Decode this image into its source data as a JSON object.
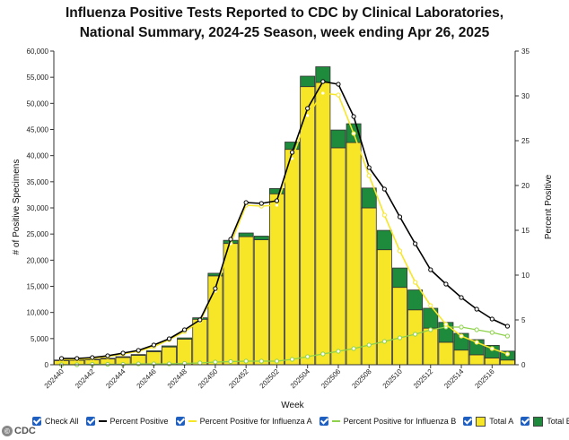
{
  "chart_data": {
    "type": "bar",
    "title_line1": "Influenza Positive Tests Reported to CDC by Clinical Laboratories,",
    "title_line2": "National Summary, 2024-25 Season, week ending Apr 26, 2025",
    "xlabel": "Week",
    "ylabel": "# of Positive Specimens",
    "y2label": "Percent Positive",
    "ylim": [
      0,
      60000
    ],
    "y2lim": [
      0,
      35
    ],
    "yticks": [
      "0",
      "5,000",
      "10,000",
      "15,000",
      "20,000",
      "25,000",
      "30,000",
      "35,000",
      "40,000",
      "45,000",
      "50,000",
      "55,000",
      "60,000"
    ],
    "y2ticks": [
      "0",
      "5",
      "10",
      "15",
      "20",
      "25",
      "30",
      "35"
    ],
    "categories": [
      "202440",
      "202441",
      "202442",
      "202443",
      "202444",
      "202445",
      "202446",
      "202447",
      "202448",
      "202449",
      "202450",
      "202451",
      "202452",
      "202453",
      "202502",
      "202503",
      "202504",
      "202505",
      "202506",
      "202507",
      "202508",
      "202509",
      "202510",
      "202511",
      "202512",
      "202513",
      "202514",
      "202515",
      "202516",
      "202517"
    ],
    "xtick_labels": [
      "202440",
      "202442",
      "202444",
      "202446",
      "202448",
      "202450",
      "202452",
      "202502",
      "202504",
      "202506",
      "202508",
      "202510",
      "202512",
      "202514",
      "202516"
    ],
    "series": [
      {
        "name": "Total A",
        "color": "#f7e628",
        "values": [
          800,
          850,
          950,
          1100,
          1400,
          1800,
          2500,
          3400,
          4900,
          8700,
          17000,
          23200,
          24500,
          23900,
          32700,
          41200,
          53200,
          54000,
          41500,
          42500,
          30000,
          22000,
          14800,
          10500,
          7000,
          4300,
          2800,
          1900,
          1300,
          900
        ]
      },
      {
        "name": "Total B",
        "color": "#1e8a3c",
        "values": [
          100,
          100,
          110,
          130,
          140,
          150,
          170,
          200,
          230,
          280,
          500,
          600,
          700,
          700,
          1000,
          1400,
          2000,
          3000,
          3400,
          3600,
          3800,
          3700,
          3700,
          3800,
          3800,
          3800,
          3200,
          2900,
          2400,
          1700
        ]
      },
      {
        "name": "Percent Positive",
        "color": "#000000",
        "values": [
          0.7,
          0.7,
          0.8,
          1.0,
          1.3,
          1.6,
          2.2,
          2.9,
          3.9,
          5.0,
          8.5,
          14.0,
          18.1,
          18.0,
          18.3,
          23.7,
          28.6,
          31.6,
          31.3,
          27.7,
          22.0,
          19.6,
          16.5,
          13.5,
          10.6,
          9.0,
          7.5,
          6.2,
          5.1,
          4.3
        ]
      },
      {
        "name": "Percent Positive for Influenza A",
        "color": "#f7e628",
        "values": [
          0.6,
          0.6,
          0.7,
          0.9,
          1.2,
          1.5,
          2.0,
          2.8,
          3.7,
          4.8,
          8.2,
          13.5,
          17.8,
          17.7,
          17.8,
          23.0,
          27.8,
          30.3,
          30.1,
          25.8,
          21.1,
          16.7,
          12.7,
          9.2,
          6.6,
          4.5,
          3.2,
          2.5,
          1.8,
          1.2
        ]
      },
      {
        "name": "Percent Positive for Influenza B",
        "color": "#8dd24a",
        "values": [
          0.0,
          0.0,
          0.05,
          0.05,
          0.05,
          0.1,
          0.1,
          0.1,
          0.15,
          0.2,
          0.3,
          0.35,
          0.4,
          0.4,
          0.4,
          0.6,
          0.9,
          1.2,
          1.5,
          1.8,
          2.2,
          2.6,
          3.0,
          3.4,
          3.9,
          4.2,
          4.2,
          3.9,
          3.6,
          3.2
        ]
      }
    ]
  },
  "legend": {
    "check_all": "Check All",
    "percent_positive": "Percent Positive",
    "percent_a": "Percent Positive for Influenza A",
    "percent_b": "Percent Positive for Influenza B",
    "total_a": "Total A",
    "total_b": "Total B"
  },
  "source": "CDC"
}
